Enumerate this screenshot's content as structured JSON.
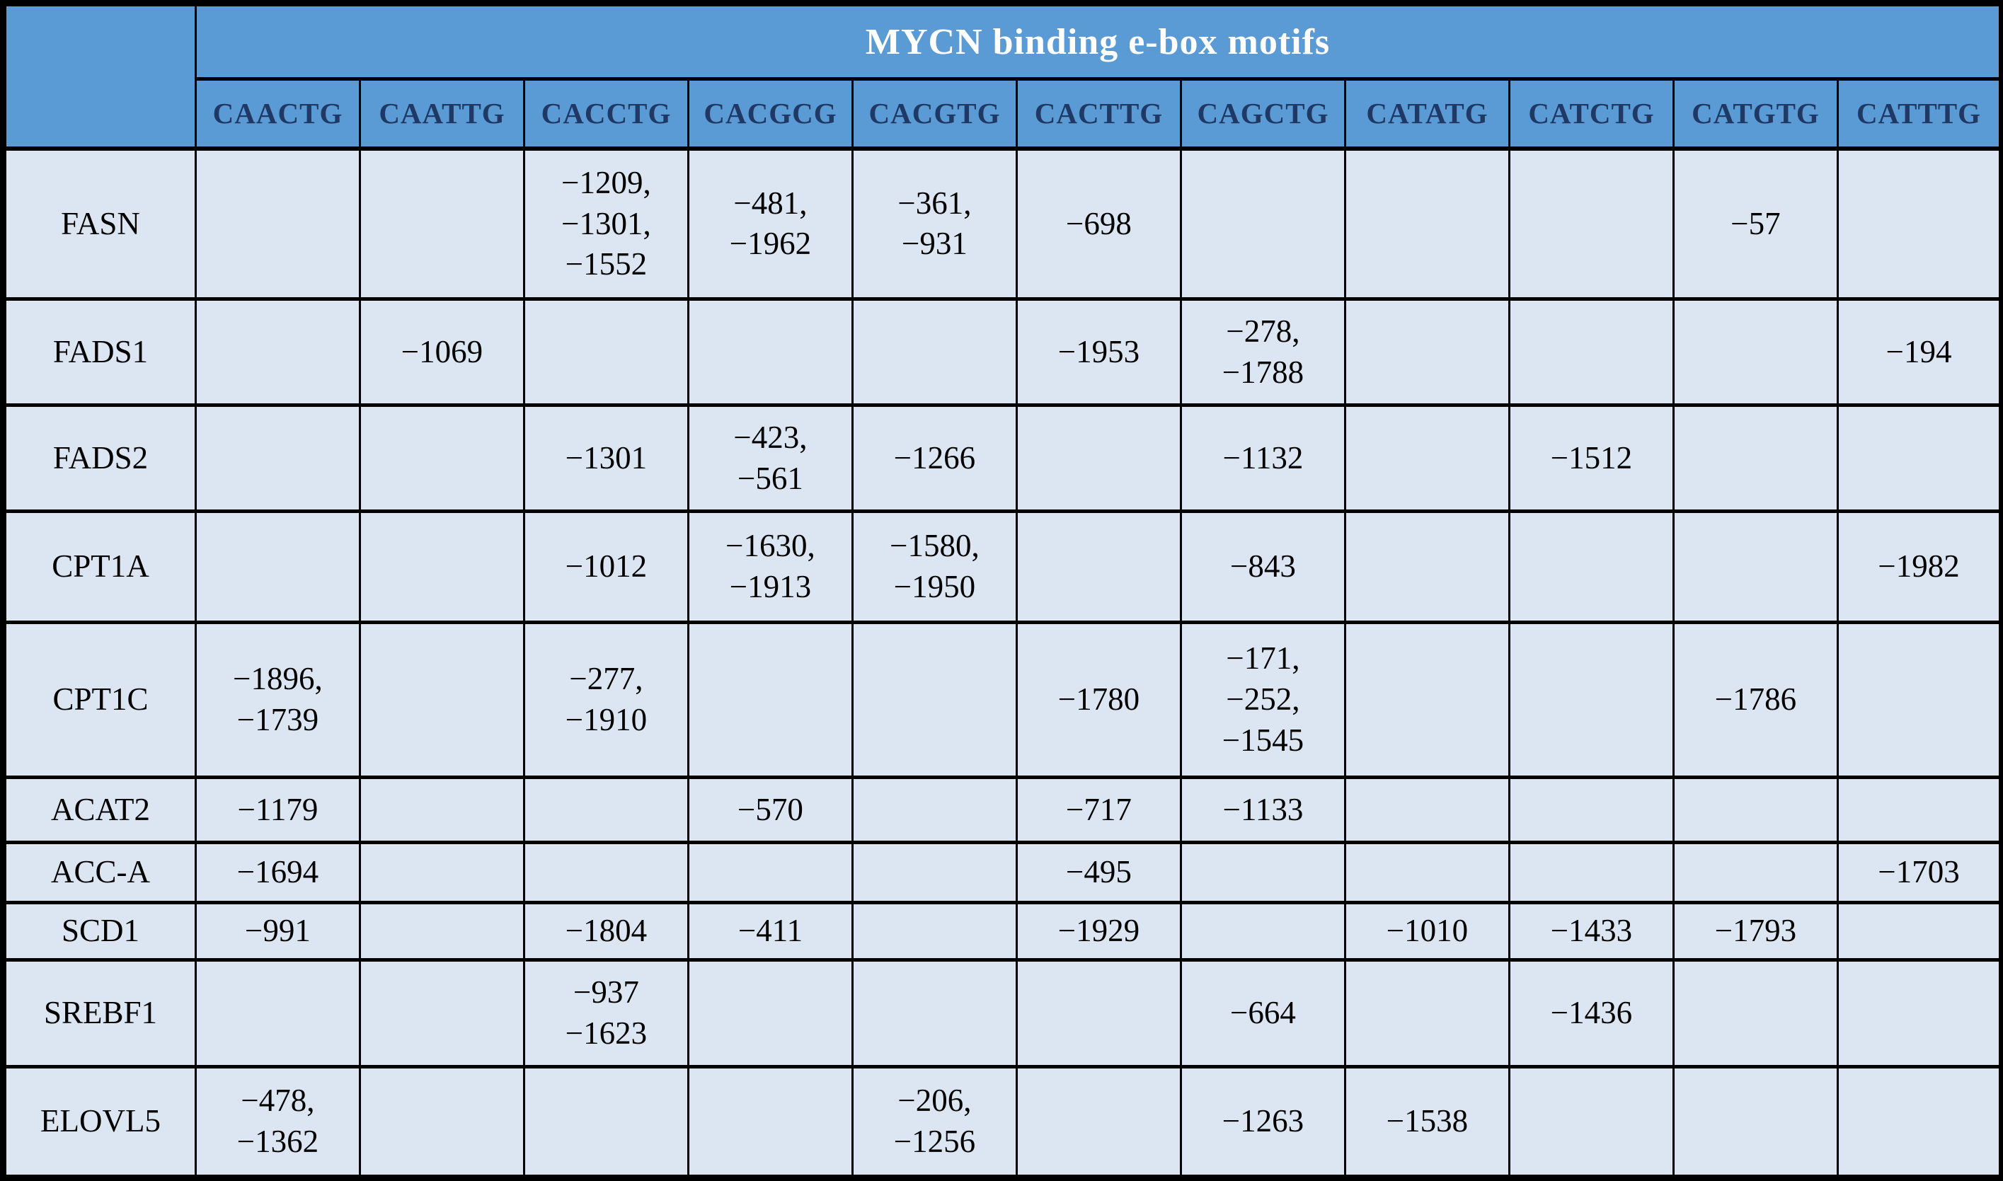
{
  "table": {
    "header": {
      "group_title": "MYCN binding e-box motifs",
      "corner_label": "",
      "motifs": [
        "CAACTG",
        "CAATTG",
        "CACCTG",
        "CACGCG",
        "CACGTG",
        "CACTTG",
        "CAGCTG",
        "CATATG",
        "CATCTG",
        "CATGTG",
        "CATTTG"
      ]
    },
    "rows": [
      {
        "gene": "FASN",
        "cells": [
          "",
          "",
          "−1209,\n−1301,\n−1552",
          "−481,\n−1962",
          "−361,\n−931",
          "−698",
          "",
          "",
          "",
          "−57",
          ""
        ]
      },
      {
        "gene": "FADS1",
        "cells": [
          "",
          "−1069",
          "",
          "",
          "",
          "−1953",
          "−278,\n−1788",
          "",
          "",
          "",
          "−194"
        ]
      },
      {
        "gene": "FADS2",
        "cells": [
          "",
          "",
          "−1301",
          "−423,\n−561",
          "−1266",
          "",
          "−1132",
          "",
          "−1512",
          "",
          ""
        ]
      },
      {
        "gene": "CPT1A",
        "cells": [
          "",
          "",
          "−1012",
          "−1630,\n−1913",
          "−1580,\n−1950",
          "",
          "−843",
          "",
          "",
          "",
          "−1982"
        ]
      },
      {
        "gene": "CPT1C",
        "cells": [
          "−1896,\n−1739",
          "",
          "−277,\n−1910",
          "",
          "",
          "−1780",
          "−171,\n−252,\n−1545",
          "",
          "",
          "−1786",
          ""
        ]
      },
      {
        "gene": "ACAT2",
        "cells": [
          "−1179",
          "",
          "",
          "−570",
          "",
          "−717",
          "−1133",
          "",
          "",
          "",
          ""
        ]
      },
      {
        "gene": "ACC-A",
        "cells": [
          "−1694",
          "",
          "",
          "",
          "",
          "−495",
          "",
          "",
          "",
          "",
          "−1703"
        ]
      },
      {
        "gene": "SCD1",
        "cells": [
          "−991",
          "",
          "−1804",
          "−411",
          "",
          "−1929",
          "",
          "−1010",
          "−1433",
          "−1793",
          ""
        ]
      },
      {
        "gene": "SREBF1",
        "cells": [
          "",
          "",
          "−937\n−1623",
          "",
          "",
          "",
          "−664",
          "",
          "−1436",
          "",
          ""
        ]
      },
      {
        "gene": "ELOVL5",
        "cells": [
          "−478,\n−1362",
          "",
          "",
          "",
          "−206,\n−1256",
          "",
          "−1263",
          "−1538",
          "",
          "",
          ""
        ]
      }
    ],
    "colors": {
      "header_bg": "#5b9bd5",
      "header_title_text": "#ffffff",
      "motif_header_text": "#1f3864",
      "body_bg": "#dce6f2",
      "cell_text": "#000000",
      "border": "#000000"
    }
  }
}
